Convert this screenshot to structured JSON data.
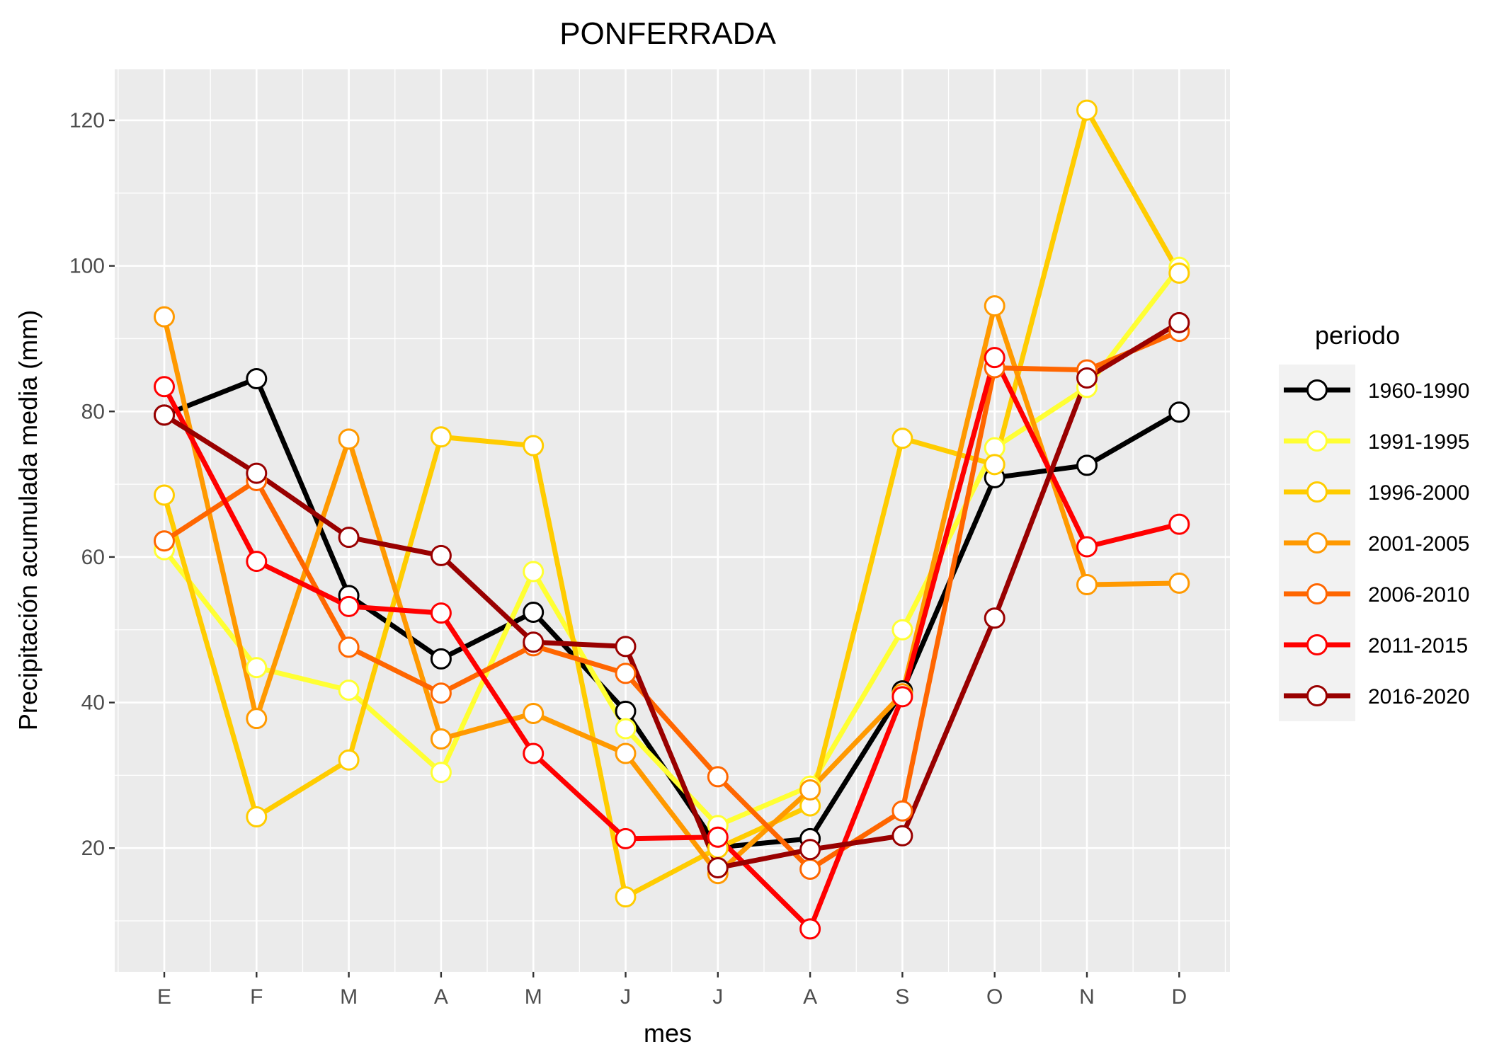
{
  "chart_data": {
    "type": "line",
    "title": "PONFERRADA",
    "xlabel": "mes",
    "ylabel": "Precipitación acumulada media (mm)",
    "categories": [
      "E",
      "F",
      "M",
      "A",
      "M",
      "J",
      "J",
      "A",
      "S",
      "O",
      "N",
      "D"
    ],
    "yticks": [
      20,
      40,
      60,
      80,
      100,
      120
    ],
    "ylim": [
      3,
      127
    ],
    "grid": true,
    "legend": {
      "title": "periodo",
      "position": "right"
    },
    "series": [
      {
        "name": "1960-1990",
        "color": "#000000",
        "values": [
          79.5,
          84.5,
          54.7,
          46.0,
          52.4,
          38.8,
          20.1,
          21.3,
          41.6,
          70.9,
          72.6,
          79.9
        ]
      },
      {
        "name": "1991-1995",
        "color": "#ffff33",
        "values": [
          61.0,
          44.8,
          41.7,
          30.4,
          58.0,
          36.4,
          23.1,
          28.5,
          50.0,
          75.0,
          83.3,
          99.8
        ]
      },
      {
        "name": "1996-2000",
        "color": "#ffcc00",
        "values": [
          68.5,
          24.3,
          32.1,
          76.5,
          75.3,
          13.3,
          20.0,
          25.8,
          76.3,
          72.7,
          121.4,
          99.0
        ]
      },
      {
        "name": "2001-2005",
        "color": "#ff9900",
        "values": [
          93.0,
          37.8,
          76.2,
          35.0,
          38.5,
          33.0,
          16.5,
          28.0,
          41.2,
          94.5,
          56.2,
          56.4
        ]
      },
      {
        "name": "2006-2010",
        "color": "#ff6600",
        "values": [
          62.2,
          70.5,
          47.6,
          41.3,
          47.8,
          44.0,
          29.8,
          17.1,
          25.1,
          86.0,
          85.7,
          91.0
        ]
      },
      {
        "name": "2011-2015",
        "color": "#ff0000",
        "values": [
          83.4,
          59.4,
          53.2,
          52.3,
          33.0,
          21.3,
          21.5,
          8.9,
          40.8,
          87.4,
          61.4,
          64.5
        ]
      },
      {
        "name": "2016-2020",
        "color": "#990000",
        "values": [
          79.5,
          71.5,
          62.7,
          60.2,
          48.3,
          47.7,
          17.3,
          19.8,
          21.7,
          51.6,
          84.6,
          92.2
        ]
      }
    ]
  }
}
